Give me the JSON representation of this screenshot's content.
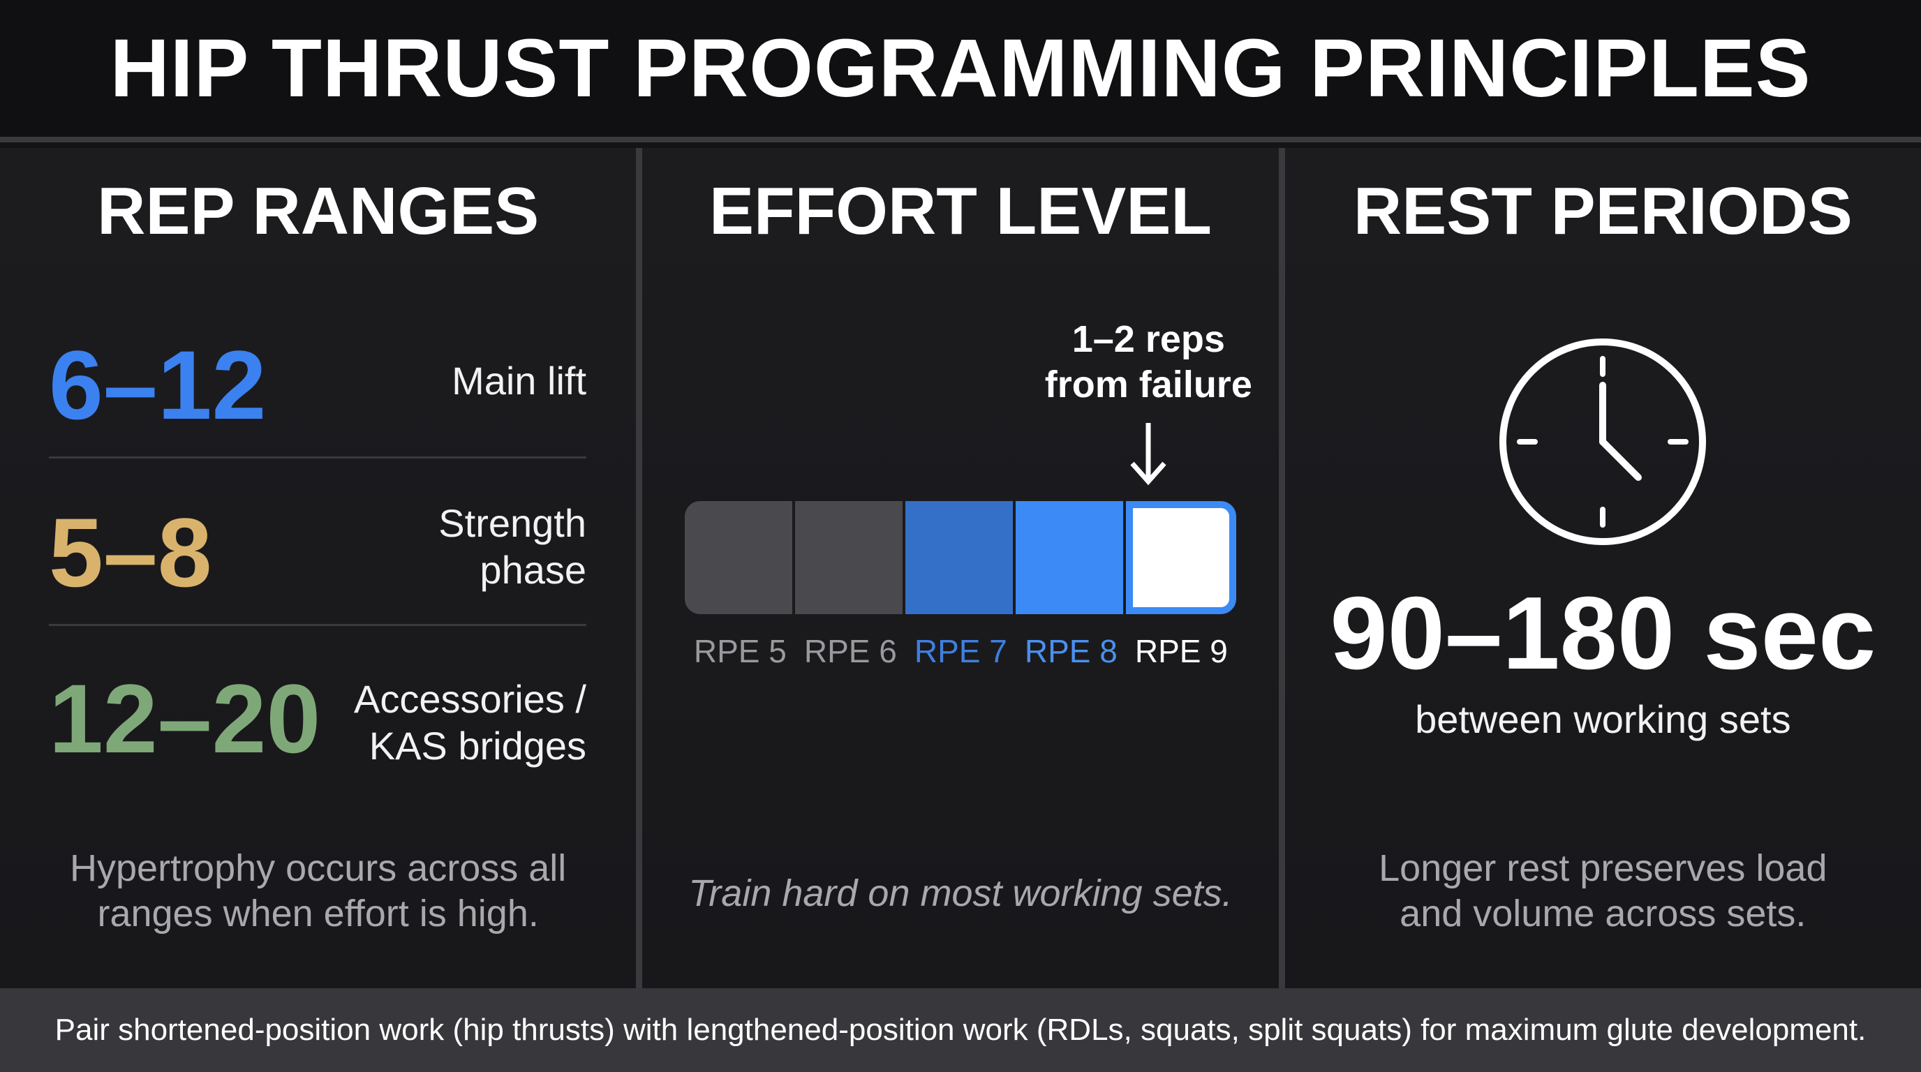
{
  "title": "HIP THRUST PROGRAMMING PRINCIPLES",
  "rep_ranges": {
    "heading": "REP RANGES",
    "rows": [
      {
        "range": "6–12",
        "label_line1": "Main lift",
        "label_line2": "",
        "color": "#3b82f0"
      },
      {
        "range": "5–8",
        "label_line1": "Strength",
        "label_line2": "phase",
        "color": "#d9b36c"
      },
      {
        "range": "12–20",
        "label_line1": "Accessories /",
        "label_line2": "KAS bridges",
        "color": "#7fa878"
      }
    ],
    "footnote_line1": "Hypertrophy occurs across all",
    "footnote_line2": "ranges when effort is high."
  },
  "effort": {
    "heading": "EFFORT LEVEL",
    "callout_line1": "1–2 reps",
    "callout_line2": "from failure",
    "segments": [
      {
        "label": "RPE 5",
        "fill": "#4a4a4e",
        "label_color": "#9a9a9e"
      },
      {
        "label": "RPE 6",
        "fill": "#4a4a4e",
        "label_color": "#9a9a9e"
      },
      {
        "label": "RPE 7",
        "fill": "#3570c8",
        "label_color": "#3f7fe0"
      },
      {
        "label": "RPE 8",
        "fill": "#3b8af5",
        "label_color": "#4a90f0"
      },
      {
        "label": "RPE 9",
        "fill": "#ffffff",
        "label_color": "#ffffff"
      }
    ],
    "highlight_border": "#3b8af5",
    "footnote": "Train hard on most working sets."
  },
  "rest": {
    "heading": "REST PERIODS",
    "icon": "clock-icon",
    "value": "90–180 sec",
    "subtitle": "between working sets",
    "footnote_line1": "Longer rest preserves load",
    "footnote_line2": "and volume across sets."
  },
  "bottom_note": "Pair shortened-position work (hip thrusts) with lengthened-position work (RDLs, squats, split squats) for maximum glute development."
}
